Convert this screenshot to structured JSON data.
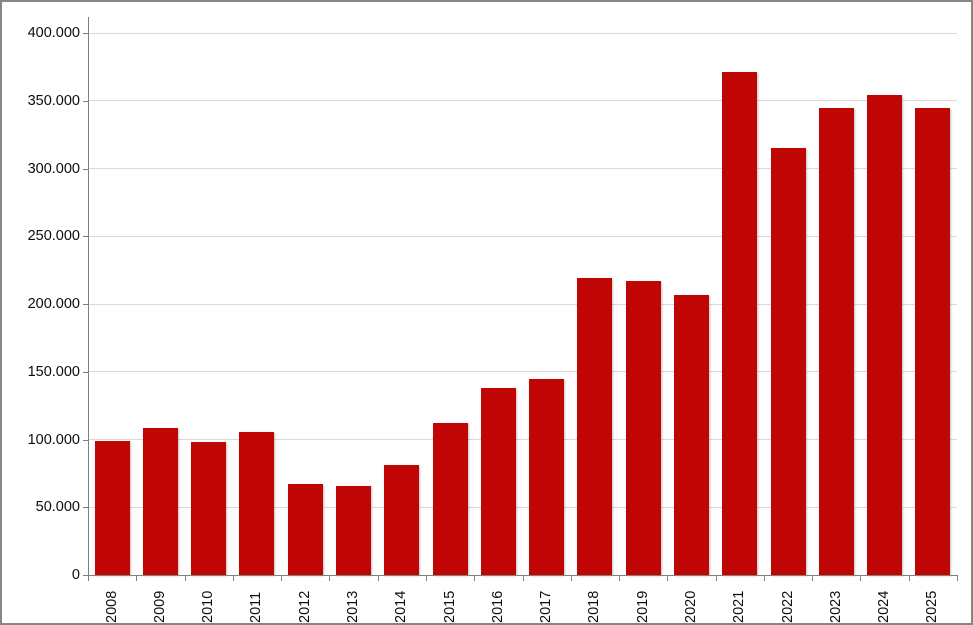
{
  "chart_data": {
    "type": "bar",
    "title": "",
    "xlabel": "",
    "ylabel": "",
    "categories": [
      "2008",
      "2009",
      "2010",
      "2011",
      "2012",
      "2013",
      "2014",
      "2015",
      "2016",
      "2017",
      "2018",
      "2019",
      "2020",
      "2021",
      "2022",
      "2023",
      "2024",
      "2025"
    ],
    "values": [
      99000,
      108500,
      98500,
      105500,
      67000,
      65500,
      81000,
      112000,
      138000,
      145000,
      219000,
      217000,
      207000,
      371000,
      315000,
      344500,
      354500,
      344500
    ],
    "ylim": [
      0,
      400000
    ],
    "ytick_step": 50000,
    "ytick_labels": [
      "0",
      "50.000",
      "100.000",
      "150.000",
      "200.000",
      "250.000",
      "300.000",
      "350.000",
      "400.000"
    ],
    "grid": true,
    "legend": false,
    "number_format": "thousands-dot",
    "colors": {
      "bar": "#c00505",
      "gridline": "#d9d9d9",
      "axis": "#808080",
      "text": "#0d0d0d",
      "border": "#868686",
      "background": "#ffffff"
    }
  }
}
